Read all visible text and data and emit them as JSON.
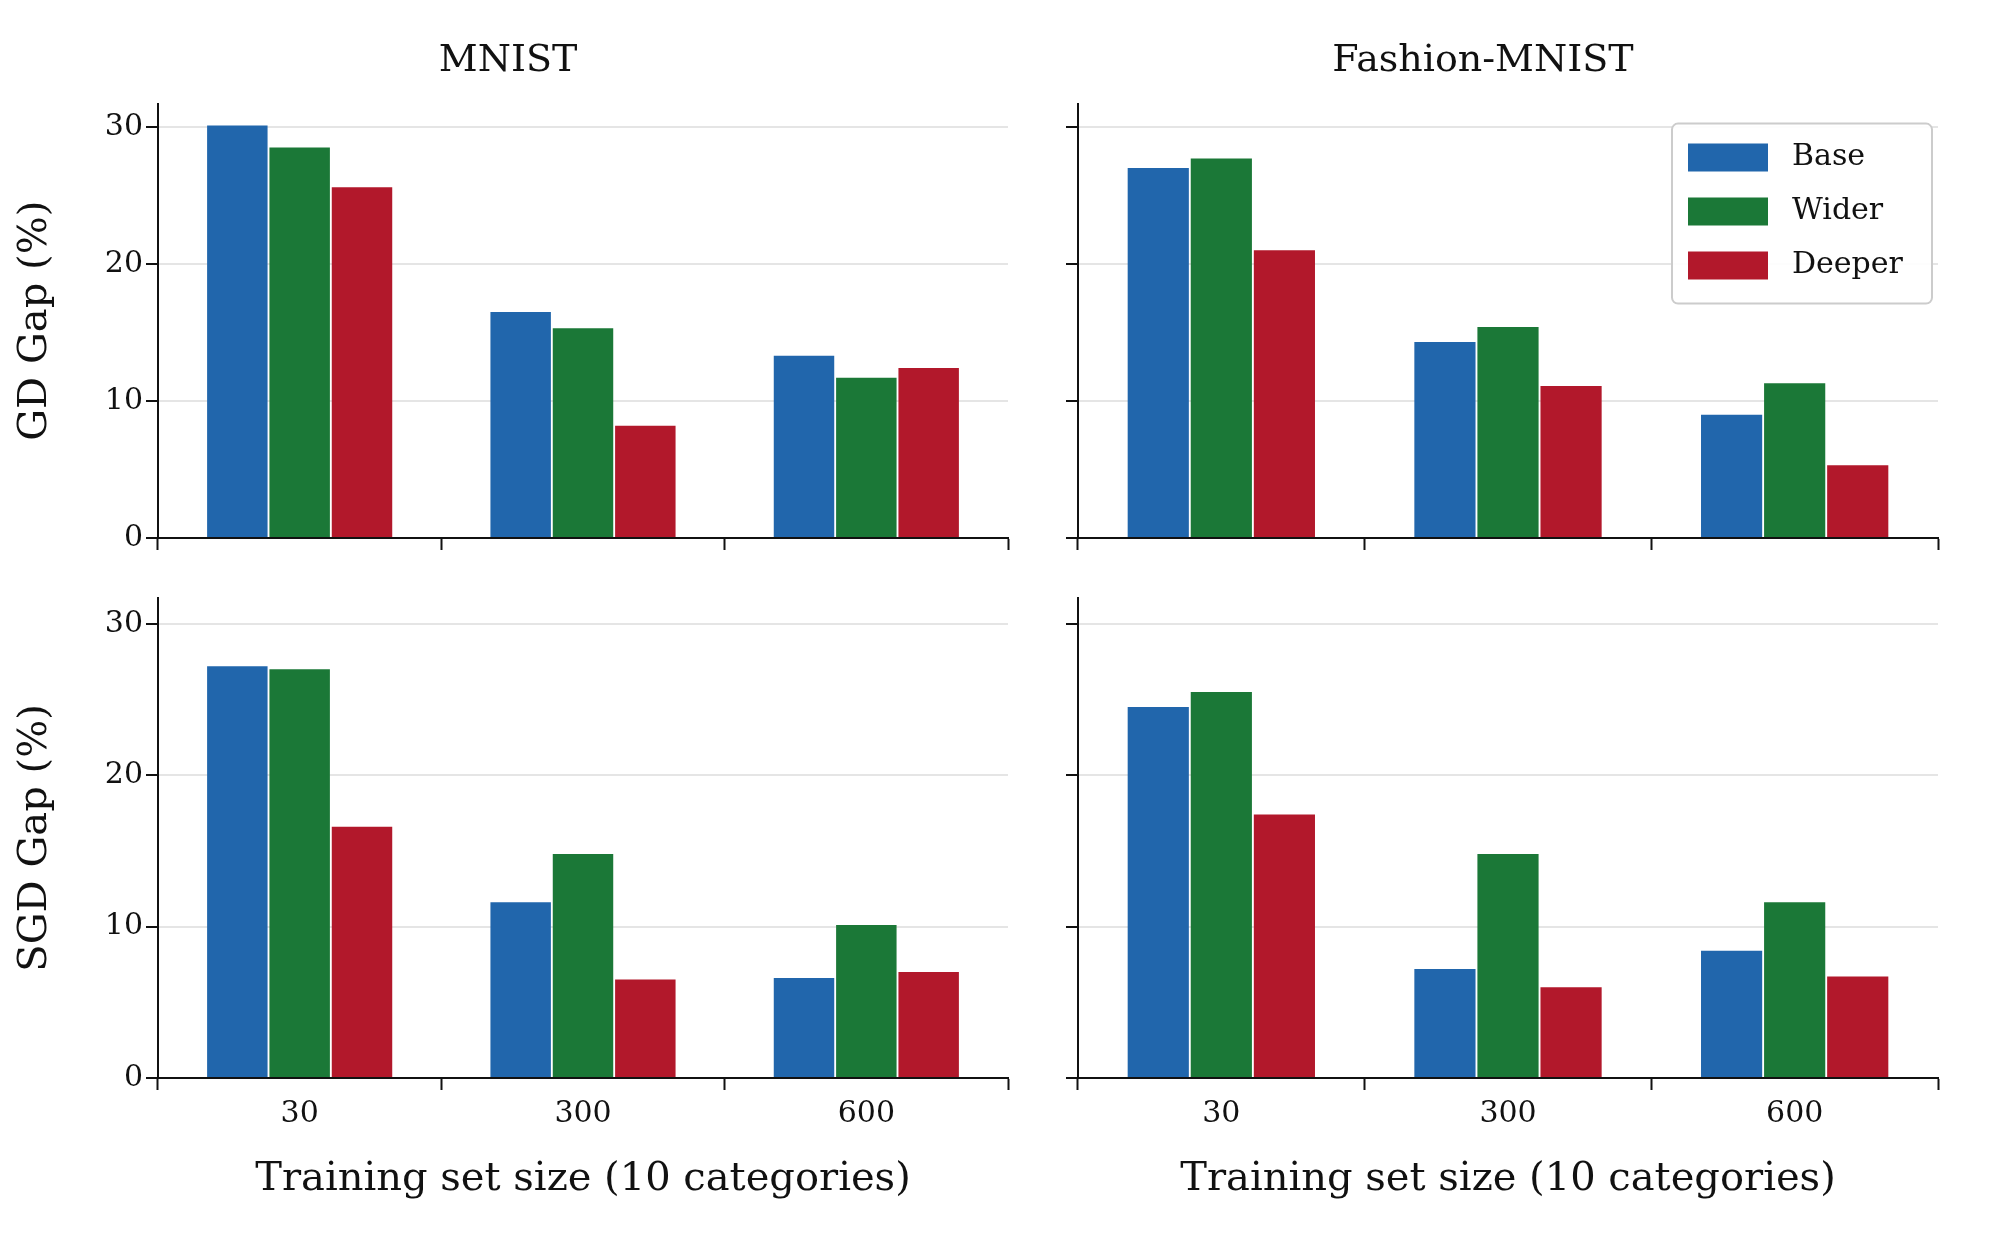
{
  "chart_data": [
    {
      "type": "bar",
      "title": "MNIST",
      "ylabel": "GD Gap (%)",
      "categories": [
        "30",
        "300",
        "600"
      ],
      "series": [
        {
          "color": "#2166ac",
          "values": [
            30.1,
            16.5,
            13.3
          ]
        },
        {
          "color": "#1b7837",
          "values": [
            28.5,
            15.3,
            11.7
          ]
        },
        {
          "color": "#b2182b",
          "values": [
            25.6,
            8.2,
            12.4
          ]
        }
      ],
      "ylim": [
        0,
        31.7
      ],
      "yticks": [
        0,
        10,
        20,
        30
      ],
      "grid": "y",
      "legend": false,
      "tick_labels": "y"
    },
    {
      "type": "bar",
      "title": "Fashion-MNIST",
      "categories": [
        "30",
        "300",
        "600"
      ],
      "series": [
        {
          "name": "Base",
          "color": "#2166ac",
          "values": [
            27.0,
            14.3,
            9.0
          ]
        },
        {
          "name": "Wider",
          "color": "#1b7837",
          "values": [
            27.7,
            15.4,
            11.3
          ]
        },
        {
          "name": "Deeper",
          "color": "#b2182b",
          "values": [
            21.0,
            11.1,
            5.3
          ]
        }
      ],
      "ylim": [
        0,
        31.7
      ],
      "yticks": [
        0,
        10,
        20,
        30
      ],
      "grid": "y",
      "legend": "top right",
      "tick_labels": false
    },
    {
      "type": "bar",
      "ylabel": "SGD Gap (%)",
      "xlabel": "Training set size (10 categories)",
      "categories": [
        "30",
        "300",
        "600"
      ],
      "series": [
        {
          "color": "#2166ac",
          "values": [
            27.2,
            11.6,
            6.6
          ]
        },
        {
          "color": "#1b7837",
          "values": [
            27.0,
            14.8,
            10.1
          ]
        },
        {
          "color": "#b2182b",
          "values": [
            16.6,
            6.5,
            7.0
          ]
        }
      ],
      "ylim": [
        0,
        31.7
      ],
      "yticks": [
        0,
        10,
        20,
        30
      ],
      "grid": "y",
      "legend": false
    },
    {
      "type": "bar",
      "xlabel": "Training set size (10 categories)",
      "categories": [
        "30",
        "300",
        "600"
      ],
      "series": [
        {
          "color": "#2166ac",
          "values": [
            24.5,
            7.2,
            8.4
          ]
        },
        {
          "color": "#1b7837",
          "values": [
            25.5,
            14.8,
            11.6
          ]
        },
        {
          "color": "#b2182b",
          "values": [
            17.4,
            6.0,
            6.7
          ]
        }
      ],
      "ylim": [
        0,
        31.7
      ],
      "yticks": [
        0,
        10,
        20,
        30
      ],
      "grid": "y",
      "legend": false,
      "tick_labels": "x"
    }
  ]
}
